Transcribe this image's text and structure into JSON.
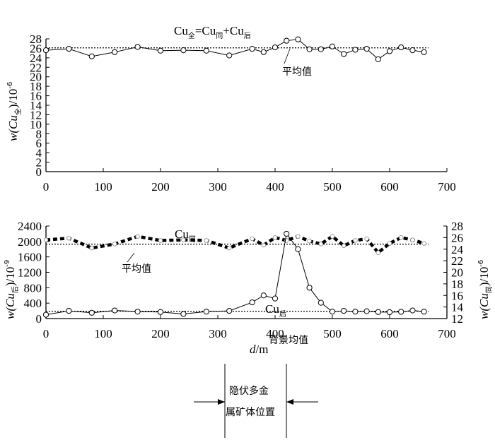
{
  "chart_data": [
    {
      "type": "line",
      "title": {
        "base": "Cu",
        "sub": "全",
        "eq": "=Cu",
        "sub2": "同",
        "plus": "+Cu",
        "sub3": "后"
      },
      "ylabel": {
        "pre": "w(Cu",
        "sub": "全",
        "post": ")/10",
        "sup": "-6"
      },
      "xlim": [
        0,
        700
      ],
      "ylim": [
        0,
        28
      ],
      "xticks": [
        "0",
        "100",
        "200",
        "300",
        "400",
        "500",
        "600",
        "700"
      ],
      "yticks": [
        "0",
        "2",
        "4",
        "6",
        "8",
        "10",
        "12",
        "14",
        "16",
        "18",
        "20",
        "22",
        "24",
        "26",
        "28"
      ],
      "series": [
        {
          "x": [
            0,
            40,
            80,
            120,
            160,
            200,
            240,
            280,
            320,
            360,
            380,
            400,
            420,
            440,
            460,
            480,
            500,
            520,
            540,
            560,
            580,
            600,
            620,
            640,
            660
          ],
          "y": [
            25.6,
            25.9,
            24.3,
            25.2,
            26.3,
            25.5,
            25.6,
            25.5,
            24.5,
            25.9,
            25.2,
            26.2,
            27.6,
            27.9,
            25.8,
            25.8,
            26.4,
            24.8,
            25.7,
            25.9,
            23.7,
            25.4,
            26.2,
            25.6,
            25.2
          ]
        }
      ],
      "reference_line": {
        "label": "平均值",
        "value": 26.1
      }
    },
    {
      "type": "line",
      "xlabel": {
        "var": "d",
        "unit": "/m"
      },
      "xlim": [
        0,
        700
      ],
      "xticks": [
        "0",
        "100",
        "200",
        "300",
        "400",
        "500",
        "600",
        "700"
      ],
      "ylim_left": [
        0,
        2400
      ],
      "yticks_left": [
        "0",
        "400",
        "800",
        "1200",
        "1600",
        "2000",
        "2400"
      ],
      "ylabel_left": {
        "pre": "w(Cu",
        "sub": "后",
        "post": ")/10",
        "sup": "-9"
      },
      "ylim_right": [
        12,
        28
      ],
      "yticks_right": [
        "12",
        "14",
        "16",
        "18",
        "20",
        "22",
        "24",
        "26",
        "28"
      ],
      "ylabel_right": {
        "pre": "w(Cu",
        "sub": "同",
        "post": ")/10",
        "sup": "-6"
      },
      "series": [
        {
          "label": {
            "base": "Cu",
            "sub": "后"
          },
          "axis": "left",
          "x": [
            0,
            40,
            80,
            120,
            160,
            200,
            240,
            280,
            320,
            360,
            380,
            400,
            420,
            440,
            460,
            480,
            500,
            520,
            540,
            560,
            580,
            600,
            620,
            640,
            660
          ],
          "y": [
            100,
            200,
            150,
            210,
            180,
            170,
            120,
            180,
            200,
            420,
            600,
            520,
            2200,
            1800,
            800,
            410,
            180,
            200,
            180,
            190,
            170,
            165,
            175,
            210,
            180
          ]
        },
        {
          "label": {
            "base": "Cu",
            "sub": "同"
          },
          "axis": "right",
          "style": "dashed-thick",
          "x": [
            0,
            40,
            80,
            120,
            160,
            200,
            240,
            280,
            320,
            360,
            380,
            400,
            420,
            440,
            460,
            480,
            500,
            520,
            540,
            560,
            580,
            600,
            620,
            640,
            660
          ],
          "y": [
            25.6,
            25.9,
            24.2,
            24.9,
            26.2,
            25.5,
            25.6,
            25.5,
            24.2,
            25.8,
            24.7,
            26.0,
            25.5,
            26.2,
            25.4,
            24.9,
            26.2,
            24.6,
            25.5,
            25.8,
            23.4,
            25.0,
            26.0,
            25.6,
            25.0
          ]
        }
      ],
      "reference_lines": [
        {
          "label": "平均值",
          "value": 1930,
          "axis": "left"
        },
        {
          "label": "背景均值",
          "value": 190,
          "axis": "left"
        }
      ]
    }
  ],
  "ore_body": {
    "line1": "隐伏多金",
    "line2": "属矿体位置"
  }
}
